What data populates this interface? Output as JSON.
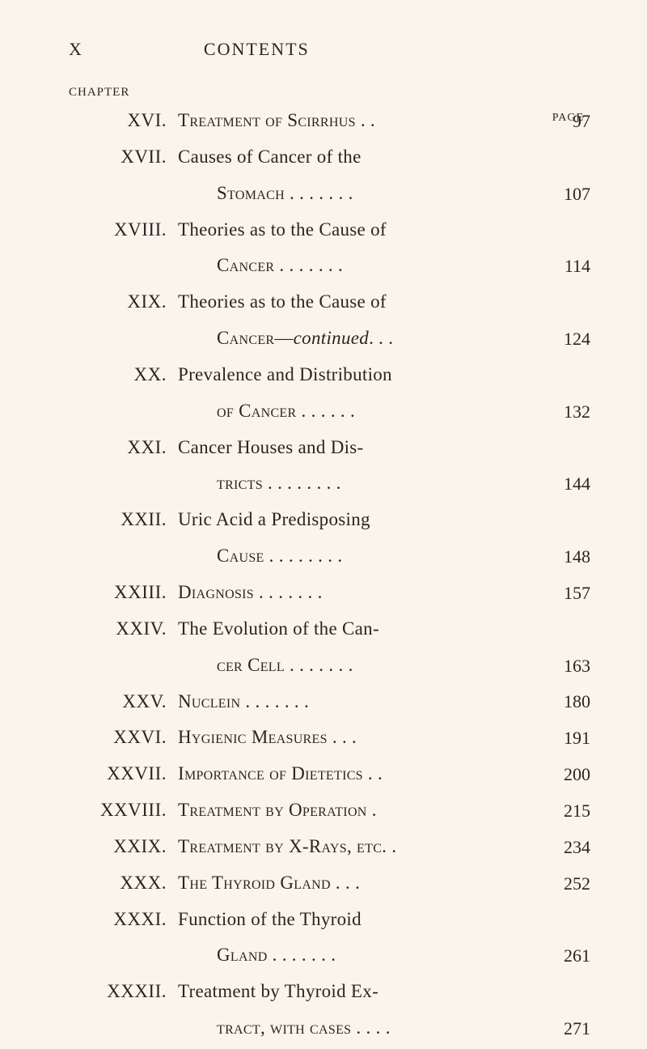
{
  "header": {
    "page_roman": "X",
    "title": "CONTENTS",
    "chapter_label": "CHAPTER",
    "page_label": "PAGE"
  },
  "entries": [
    {
      "num": "XVI.",
      "lines": [
        "Treatment of Scirrhus . ."
      ],
      "page": "97"
    },
    {
      "num": "XVII.",
      "lines": [
        "Causes of Cancer of the",
        "Stomach . . . . . . ."
      ],
      "page": "107"
    },
    {
      "num": "XVIII.",
      "lines": [
        "Theories as to the Cause of",
        "Cancer . . . . . . ."
      ],
      "page": "114"
    },
    {
      "num": "XIX.",
      "lines": [
        "Theories as to the Cause of"
      ],
      "cont": "Cancer—",
      "italic": "continued",
      "tail": " . . .",
      "page": "124"
    },
    {
      "num": "XX.",
      "lines": [
        "Prevalence and Distribution",
        "of Cancer . . . . . ."
      ],
      "page": "132"
    },
    {
      "num": "XXI.",
      "lines": [
        "Cancer Houses and Dis-",
        "tricts . . . . . . . ."
      ],
      "page": "144"
    },
    {
      "num": "XXII.",
      "lines": [
        "Uric Acid a Predisposing",
        "Cause . . . . . . . ."
      ],
      "page": "148"
    },
    {
      "num": "XXIII.",
      "lines": [
        "Diagnosis . . . . . . ."
      ],
      "page": "157"
    },
    {
      "num": "XXIV.",
      "lines": [
        "The Evolution of the Can-",
        "cer Cell . . . . . . ."
      ],
      "page": "163"
    },
    {
      "num": "XXV.",
      "lines": [
        "Nuclein  . . . . . . ."
      ],
      "page": "180"
    },
    {
      "num": "XXVI.",
      "lines": [
        "Hygienic Measures  . . ."
      ],
      "page": "191"
    },
    {
      "num": "XXVII.",
      "lines": [
        "Importance of Dietetics .  ."
      ],
      "page": "200"
    },
    {
      "num": "XXVIII.",
      "lines": [
        "Treatment by Operation  ."
      ],
      "page": "215"
    },
    {
      "num": "XXIX.",
      "lines": [
        "Treatment by X-Rays, etc. ."
      ],
      "page": "234"
    },
    {
      "num": "XXX.",
      "lines": [
        "The Thyroid Gland . . ."
      ],
      "page": "252"
    },
    {
      "num": "XXXI.",
      "lines": [
        "Function of the Thyroid",
        "Gland . . . . . . ."
      ],
      "page": "261"
    },
    {
      "num": "XXXII.",
      "lines": [
        "Treatment by Thyroid Ex-",
        "tract, with cases . . . ."
      ],
      "page": "271"
    }
  ],
  "style": {
    "bg_color": "#f9f5ed",
    "text_color": "#2a2520",
    "title_fontsize": 23,
    "page_fontsize": 22
  }
}
